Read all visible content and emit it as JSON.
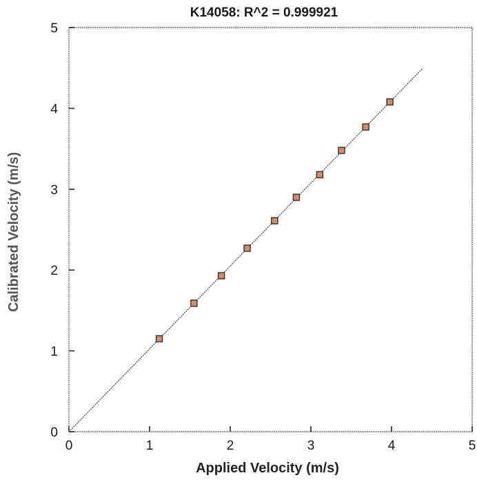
{
  "colors": {
    "marker_fill": "#c9907a",
    "marker_stroke": "#3a2a2a",
    "fit_line": "#555555",
    "xlabel": "#222222",
    "ylabel": "#555555"
  },
  "chart_data": {
    "type": "scatter",
    "title": "K14058: R^2 = 0.999921",
    "xlabel": "Applied Velocity (m/s)",
    "ylabel": "Calibrated Velocity (m/s)",
    "xlim": [
      0,
      5
    ],
    "ylim": [
      0,
      5
    ],
    "xticks": [
      "0",
      "1",
      "2",
      "3",
      "4",
      "5"
    ],
    "yticks": [
      "0",
      "1",
      "2",
      "3",
      "4",
      "5"
    ],
    "grid": false,
    "series": [
      {
        "points": [
          {
            "x": 1.12,
            "y": 1.15
          },
          {
            "x": 1.55,
            "y": 1.59
          },
          {
            "x": 1.89,
            "y": 1.93
          },
          {
            "x": 2.21,
            "y": 2.27
          },
          {
            "x": 2.55,
            "y": 2.61
          },
          {
            "x": 2.82,
            "y": 2.9
          },
          {
            "x": 3.11,
            "y": 3.18
          },
          {
            "x": 3.38,
            "y": 3.48
          },
          {
            "x": 3.68,
            "y": 3.77
          },
          {
            "x": 3.98,
            "y": 4.08
          }
        ]
      }
    ],
    "fit_line": {
      "x": [
        0,
        4.38
      ],
      "y": [
        0,
        4.49
      ]
    }
  }
}
